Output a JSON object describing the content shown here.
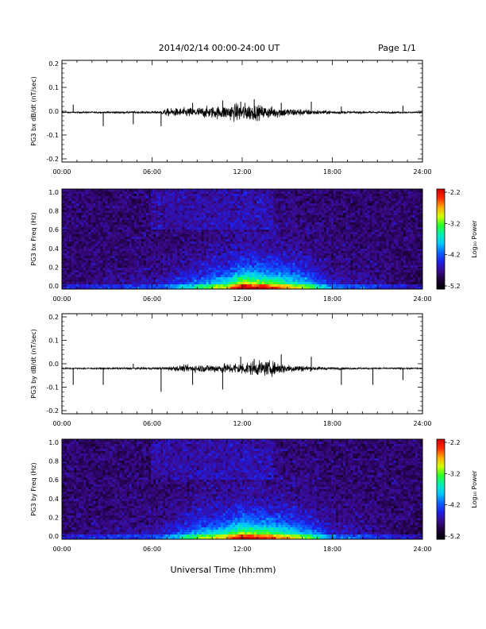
{
  "header": {
    "title": "2014/02/14  00:00-24:00 UT",
    "page": "Page 1/1"
  },
  "footer": {
    "xlabel": "Universal Time (hh:mm)"
  },
  "colors": {
    "colormap": [
      "#000000",
      "#1b0036",
      "#3a0a8c",
      "#1e1ee6",
      "#0a64ff",
      "#00c8ff",
      "#00f0b4",
      "#28ff28",
      "#d2ff00",
      "#ffaa00",
      "#ff2800",
      "#d20000"
    ],
    "waveform_line": "#000000"
  },
  "chart_data": [
    {
      "type": "line",
      "id": "bx_waveform",
      "ylabel": "PG3 bx dB/dt (nT/sec)",
      "xlim": [
        0,
        24
      ],
      "ylim": [
        -0.2,
        0.2
      ],
      "x_ticks": [
        "00:00",
        "06:00",
        "12:00",
        "18:00",
        "24:00"
      ],
      "y_ticks": [
        "0.2",
        "0.1",
        "0.0",
        "-0.1",
        "-0.2"
      ],
      "baseline": -0.005,
      "spikes": [
        {
          "t": 0.75,
          "a": 0.033
        },
        {
          "t": 2.75,
          "a": -0.058
        },
        {
          "t": 4.75,
          "a": -0.05
        },
        {
          "t": 6.6,
          "a": -0.058
        },
        {
          "t": 8.7,
          "a": 0.04
        },
        {
          "t": 10.7,
          "a": 0.05
        },
        {
          "t": 11.9,
          "a": 0.045
        },
        {
          "t": 12.8,
          "a": 0.055
        },
        {
          "t": 14.6,
          "a": 0.04
        },
        {
          "t": 16.6,
          "a": 0.045
        },
        {
          "t": 18.6,
          "a": 0.025
        },
        {
          "t": 22.7,
          "a": 0.028
        }
      ],
      "activity": [
        {
          "t": 0,
          "amp": 0.002
        },
        {
          "t": 6.5,
          "amp": 0.004
        },
        {
          "t": 7.0,
          "amp": 0.012
        },
        {
          "t": 8.5,
          "amp": 0.015
        },
        {
          "t": 10.5,
          "amp": 0.02
        },
        {
          "t": 12.0,
          "amp": 0.03
        },
        {
          "t": 13.5,
          "amp": 0.02
        },
        {
          "t": 15.0,
          "amp": 0.014
        },
        {
          "t": 17.0,
          "amp": 0.007
        },
        {
          "t": 19.0,
          "amp": 0.004
        },
        {
          "t": 24.0,
          "amp": 0.002
        }
      ]
    },
    {
      "type": "heatmap",
      "id": "bx_spectrogram",
      "ylabel": "PG3 bx Freq (Hz)",
      "xlim": [
        0,
        24
      ],
      "ylim": [
        0,
        1.0
      ],
      "x_ticks": [
        "00:00",
        "06:00",
        "12:00",
        "18:00",
        "24:00"
      ],
      "y_ticks": [
        "1.0",
        "0.8",
        "0.6",
        "0.4",
        "0.2",
        "0.0"
      ],
      "colorbar": {
        "label": "Log₁₀ Power",
        "range": [
          -5.2,
          -2.2
        ],
        "ticks": [
          "-2.2",
          "-3.2",
          "-4.2",
          "-5.2"
        ]
      },
      "noise_band": {
        "t_start": 0,
        "t_end": 24,
        "f_low": 0,
        "f_high": 1.0
      },
      "enhanced_band": {
        "t_start": 6.0,
        "t_end": 14.0,
        "f_low": 0.6,
        "f_high": 1.0
      },
      "activity": [
        {
          "t": 0,
          "level": -4.9
        },
        {
          "t": 6.5,
          "level": -4.7
        },
        {
          "t": 8.5,
          "level": -4.3
        },
        {
          "t": 11.0,
          "level": -3.7
        },
        {
          "t": 12.0,
          "level": -3.0
        },
        {
          "t": 14.0,
          "level": -3.3
        },
        {
          "t": 16.5,
          "level": -4.0
        },
        {
          "t": 18.0,
          "level": -4.6
        },
        {
          "t": 24.0,
          "level": -5.0
        }
      ]
    },
    {
      "type": "line",
      "id": "by_waveform",
      "ylabel": "PG3 by dB/dt (nT/sec)",
      "xlim": [
        0,
        24
      ],
      "ylim": [
        -0.2,
        0.2
      ],
      "x_ticks": [
        "00:00",
        "06:00",
        "12:00",
        "18:00",
        "24:00"
      ],
      "y_ticks": [
        "0.2",
        "0.1",
        "0.0",
        "-0.1",
        "-0.2"
      ],
      "baseline": -0.02,
      "spikes": [
        {
          "t": 0.75,
          "a": -0.07
        },
        {
          "t": 2.75,
          "a": -0.07
        },
        {
          "t": 4.75,
          "a": 0.02
        },
        {
          "t": 6.6,
          "a": -0.1
        },
        {
          "t": 8.7,
          "a": -0.07
        },
        {
          "t": 10.7,
          "a": -0.09
        },
        {
          "t": 11.9,
          "a": 0.05
        },
        {
          "t": 12.8,
          "a": 0.04
        },
        {
          "t": 14.6,
          "a": 0.06
        },
        {
          "t": 16.6,
          "a": 0.05
        },
        {
          "t": 18.6,
          "a": -0.07
        },
        {
          "t": 20.7,
          "a": -0.07
        },
        {
          "t": 22.7,
          "a": -0.05
        }
      ],
      "activity": [
        {
          "t": 0,
          "amp": 0.002
        },
        {
          "t": 6.5,
          "amp": 0.004
        },
        {
          "t": 8.0,
          "amp": 0.01
        },
        {
          "t": 10.5,
          "amp": 0.014
        },
        {
          "t": 12.0,
          "amp": 0.02
        },
        {
          "t": 13.8,
          "amp": 0.024
        },
        {
          "t": 15.0,
          "amp": 0.014
        },
        {
          "t": 17.0,
          "amp": 0.006
        },
        {
          "t": 19.0,
          "amp": 0.003
        },
        {
          "t": 24.0,
          "amp": 0.002
        }
      ]
    },
    {
      "type": "heatmap",
      "id": "by_spectrogram",
      "ylabel": "PG3 by Freq (Hz)",
      "xlim": [
        0,
        24
      ],
      "ylim": [
        0,
        1.0
      ],
      "x_ticks": [
        "00:00",
        "06:00",
        "12:00",
        "18:00",
        "24:00"
      ],
      "y_ticks": [
        "1.0",
        "0.8",
        "0.6",
        "0.4",
        "0.2",
        "0.0"
      ],
      "colorbar": {
        "label": "Log₁₀ Power",
        "range": [
          -5.2,
          -2.2
        ],
        "ticks": [
          "-2.2",
          "-3.2",
          "-4.2",
          "-5.2"
        ]
      },
      "noise_band": {
        "t_start": 0,
        "t_end": 24,
        "f_low": 0,
        "f_high": 1.0
      },
      "enhanced_band": {
        "t_start": 6.0,
        "t_end": 14.0,
        "f_low": 0.6,
        "f_high": 1.0
      },
      "activity": [
        {
          "t": 0,
          "level": -4.9
        },
        {
          "t": 6.5,
          "level": -4.7
        },
        {
          "t": 8.5,
          "level": -4.1
        },
        {
          "t": 11.0,
          "level": -3.6
        },
        {
          "t": 12.0,
          "level": -3.1
        },
        {
          "t": 14.0,
          "level": -3.4
        },
        {
          "t": 16.5,
          "level": -4.0
        },
        {
          "t": 18.0,
          "level": -4.6
        },
        {
          "t": 24.0,
          "level": -5.0
        }
      ]
    }
  ]
}
